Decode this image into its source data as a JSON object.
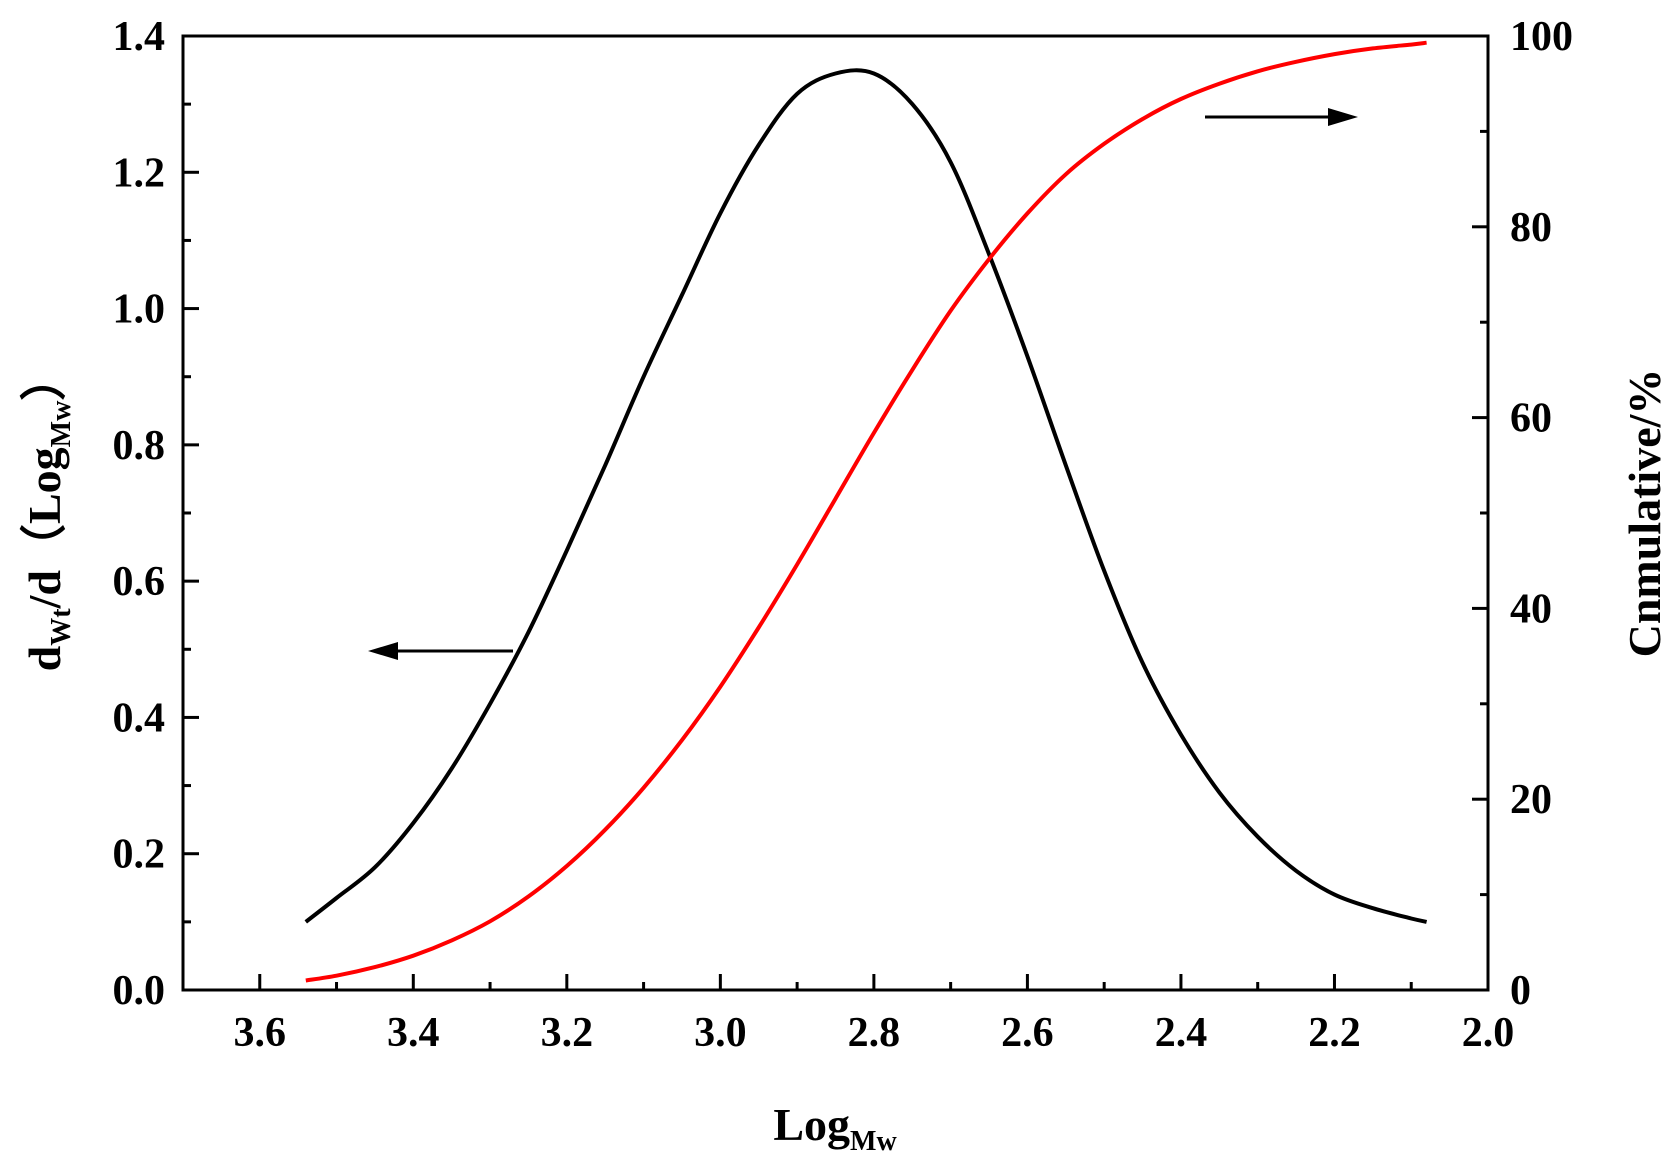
{
  "chart_data": {
    "type": "line",
    "x_axis": {
      "label": "Log",
      "label_sub": "Mw",
      "range": [
        3.7,
        2.0
      ],
      "reversed": true,
      "ticks": [
        "3.6",
        "3.4",
        "3.2",
        "3.0",
        "2.8",
        "2.6",
        "2.4",
        "2.2",
        "2.0"
      ]
    },
    "y_left": {
      "label_parts": [
        "d",
        "Wt",
        "/d（Log",
        "Mw",
        "）"
      ],
      "range": [
        0,
        1.4
      ],
      "ticks": [
        "0.0",
        "0.2",
        "0.4",
        "0.6",
        "0.8",
        "1.0",
        "1.2",
        "1.4"
      ]
    },
    "y_right": {
      "label": "Cnmulative/%",
      "range": [
        0,
        100
      ],
      "ticks": [
        "0",
        "20",
        "40",
        "60",
        "80",
        "100"
      ]
    },
    "series": [
      {
        "axis": "left",
        "color": "#000000",
        "x": [
          3.54,
          3.5,
          3.45,
          3.4,
          3.35,
          3.3,
          3.25,
          3.2,
          3.15,
          3.1,
          3.05,
          3.0,
          2.95,
          2.9,
          2.85,
          2.8,
          2.75,
          2.7,
          2.65,
          2.6,
          2.55,
          2.5,
          2.45,
          2.4,
          2.35,
          2.3,
          2.25,
          2.2,
          2.15,
          2.1,
          2.08
        ],
        "y": [
          0.1,
          0.135,
          0.18,
          0.245,
          0.325,
          0.42,
          0.525,
          0.645,
          0.77,
          0.9,
          1.02,
          1.14,
          1.24,
          1.315,
          1.345,
          1.345,
          1.3,
          1.215,
          1.08,
          0.93,
          0.77,
          0.615,
          0.48,
          0.375,
          0.29,
          0.225,
          0.175,
          0.14,
          0.12,
          0.105,
          0.1
        ]
      },
      {
        "axis": "right",
        "color": "#ff0000",
        "x": [
          3.54,
          3.5,
          3.45,
          3.4,
          3.35,
          3.3,
          3.25,
          3.2,
          3.15,
          3.1,
          3.05,
          3.0,
          2.95,
          2.9,
          2.85,
          2.8,
          2.75,
          2.7,
          2.65,
          2.6,
          2.55,
          2.5,
          2.45,
          2.4,
          2.35,
          2.3,
          2.25,
          2.2,
          2.15,
          2.1,
          2.08
        ],
        "y": [
          1.0,
          1.5,
          2.4,
          3.6,
          5.2,
          7.2,
          9.8,
          13.0,
          16.8,
          21.2,
          26.2,
          31.8,
          38.0,
          44.6,
          51.5,
          58.4,
          65.0,
          71.2,
          76.6,
          81.4,
          85.5,
          88.7,
          91.3,
          93.4,
          95.0,
          96.3,
          97.3,
          98.1,
          98.7,
          99.1,
          99.3
        ]
      }
    ],
    "annotations": [
      {
        "type": "arrow",
        "direction": "left",
        "refers_to": "left-axis"
      },
      {
        "type": "arrow",
        "direction": "right",
        "refers_to": "right-axis"
      }
    ]
  }
}
